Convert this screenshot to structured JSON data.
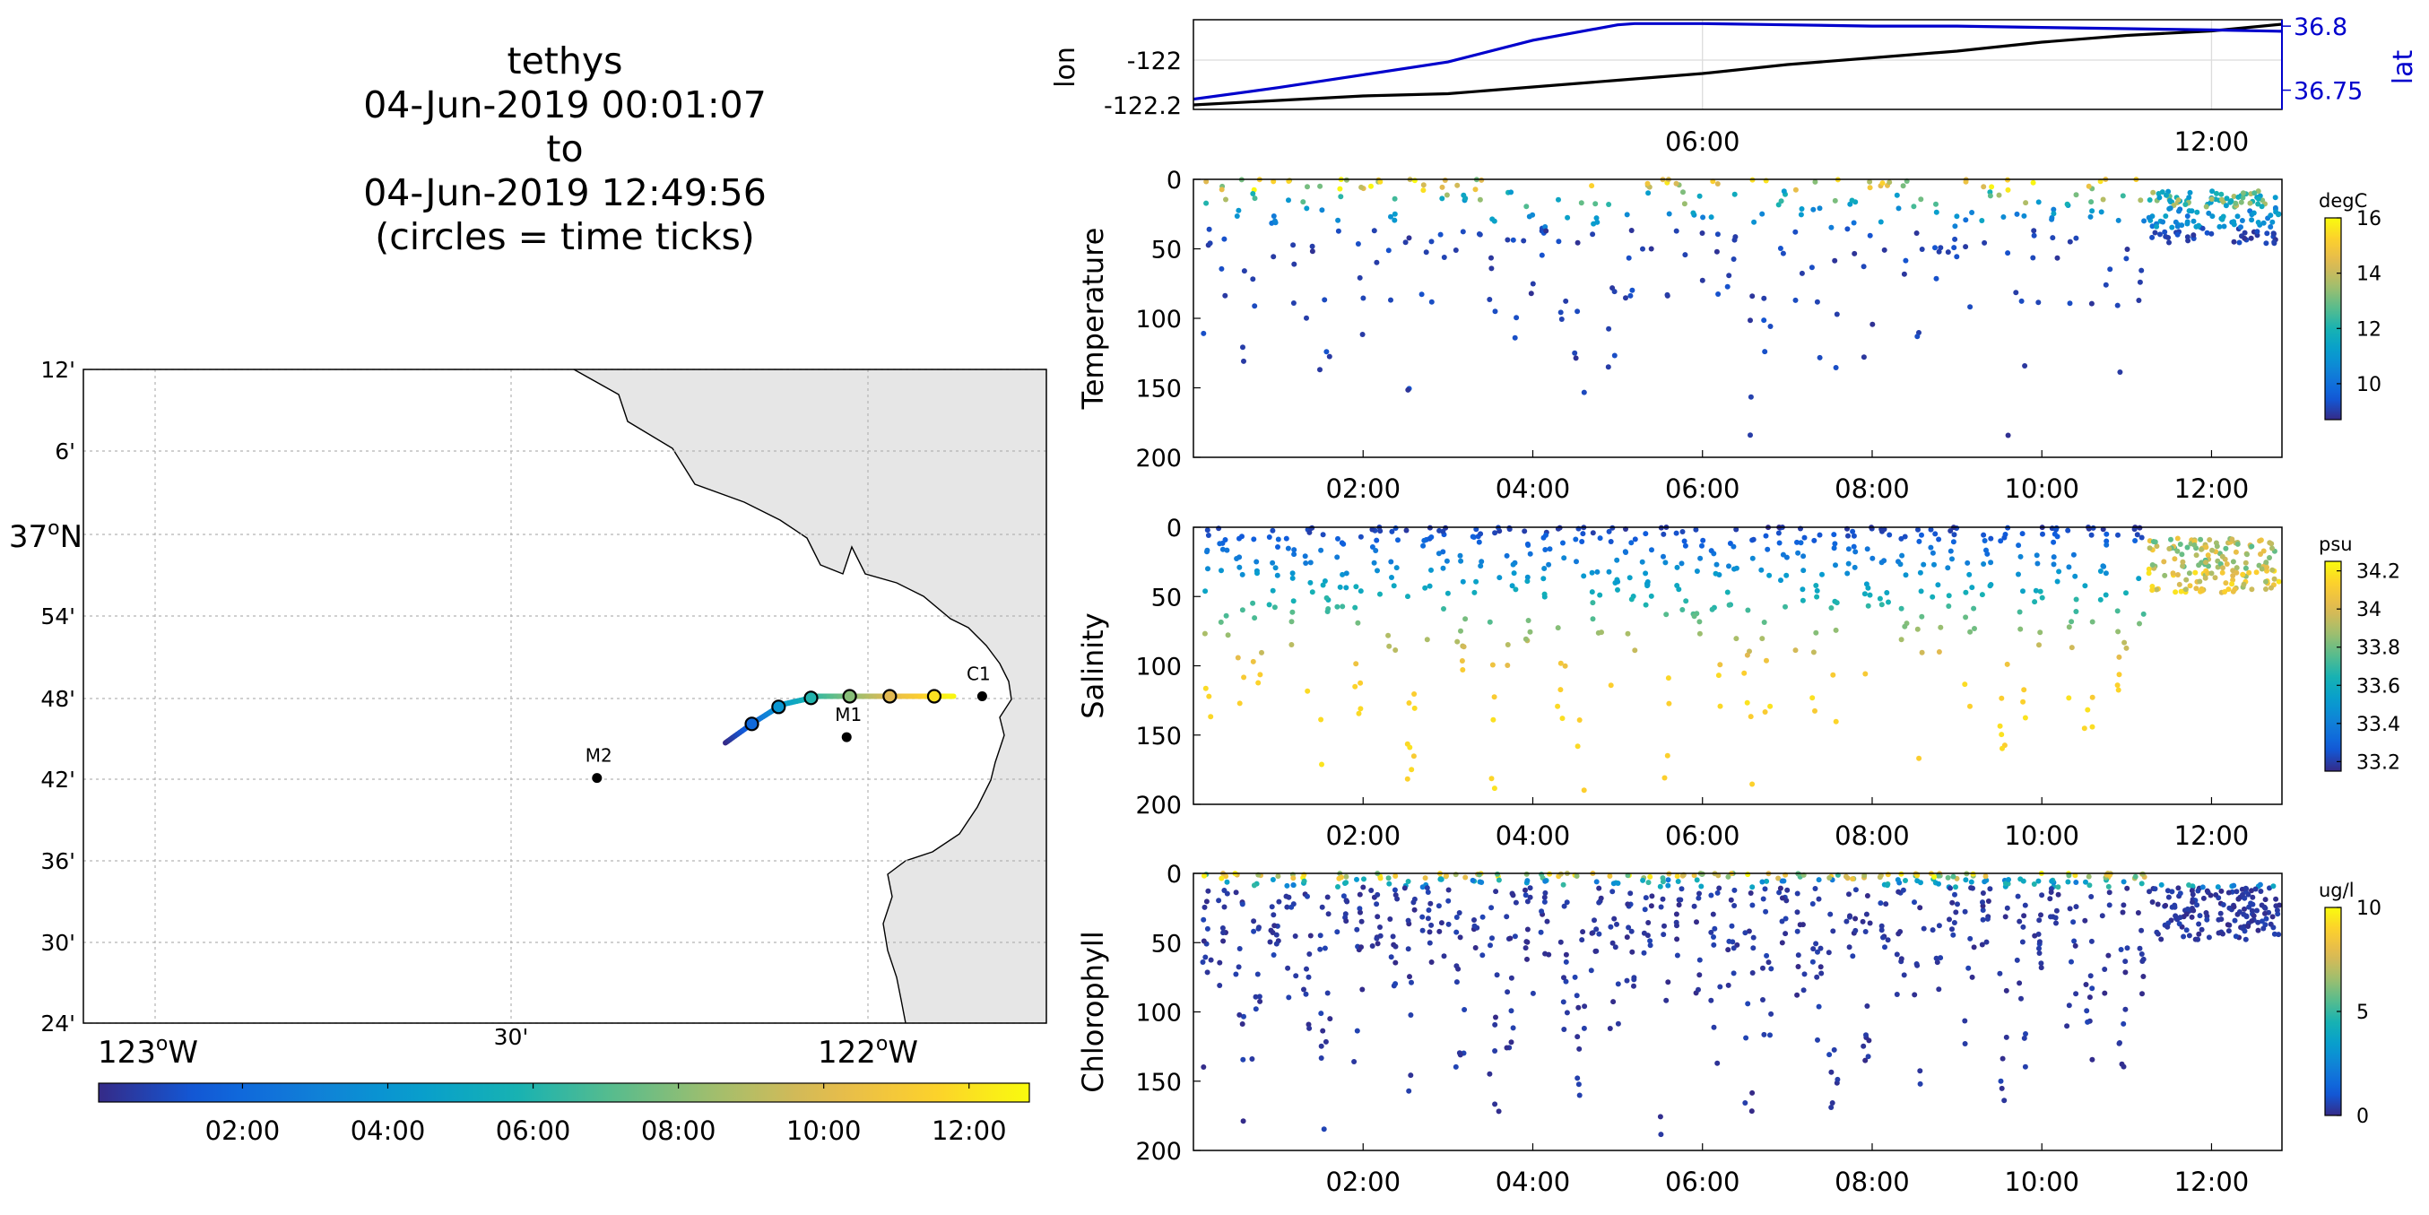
{
  "header": {
    "vehicle": "tethys",
    "start": "04-Jun-2019 00:01:07",
    "to": "to",
    "end": "04-Jun-2019 12:49:56",
    "note": "(circles = time ticks)"
  },
  "chart_data": [
    {
      "type": "map",
      "lon_labels": [
        "123",
        "30'",
        "122"
      ],
      "lon_suffix": "W",
      "lat_labels": [
        "12'",
        "6'",
        "37",
        "54'",
        "48'",
        "42'",
        "36'",
        "30'",
        "24'"
      ],
      "lat_suffix": "N",
      "degree_mark": "o",
      "lon_range": [
        -123.1,
        -121.75
      ],
      "lat_range": [
        36.4,
        37.2
      ],
      "grid": true,
      "land_color": "#e6e6e6",
      "stations": [
        {
          "name": "M2",
          "lon": -122.38,
          "lat": 36.7
        },
        {
          "name": "M1",
          "lon": -122.03,
          "lat": 36.75
        },
        {
          "name": "C1",
          "lon": -121.84,
          "lat": 36.8
        }
      ],
      "track": {
        "lon": [
          -122.2,
          -122.16,
          -122.12,
          -122.07,
          -122.01,
          -121.95,
          -121.88
        ],
        "lat": [
          36.743,
          36.768,
          36.79,
          36.8,
          36.8,
          36.8,
          36.8
        ],
        "time_range_h": [
          0.02,
          12.83
        ]
      },
      "time_tick_hours": [
        2,
        4,
        6,
        8,
        10,
        12
      ],
      "colorbar": {
        "ticks": [
          "02:00",
          "04:00",
          "06:00",
          "08:00",
          "10:00",
          "12:00"
        ],
        "range_h": [
          0.02,
          12.83
        ]
      }
    },
    {
      "type": "line",
      "ylabel": "lon",
      "y2label": "lat",
      "y_ticks": [
        "-122",
        "-122.2"
      ],
      "y2_ticks": [
        "36.8",
        "36.75"
      ],
      "x_ticks": [
        "06:00",
        "12:00"
      ],
      "xlim_h": [
        0,
        12.83
      ],
      "ylim": [
        -122.22,
        -121.82
      ],
      "y2lim": [
        36.735,
        36.805
      ],
      "grid": true,
      "series": [
        {
          "name": "lon",
          "color": "#000000",
          "x_h": [
            0,
            1,
            2,
            3,
            4,
            5,
            6,
            7,
            8,
            9,
            10,
            11,
            12,
            12.83
          ],
          "values": [
            -122.2,
            -122.18,
            -122.16,
            -122.15,
            -122.12,
            -122.09,
            -122.06,
            -122.02,
            -121.99,
            -121.96,
            -121.92,
            -121.89,
            -121.87,
            -121.84
          ]
        },
        {
          "name": "lat",
          "color": "#0000cc",
          "x_h": [
            0,
            1,
            2,
            3,
            4,
            5,
            5.2,
            6,
            7,
            8,
            9,
            10,
            11,
            12,
            12.83
          ],
          "values": [
            36.743,
            36.752,
            36.762,
            36.772,
            36.789,
            36.801,
            36.802,
            36.802,
            36.801,
            36.8,
            36.8,
            36.799,
            36.798,
            36.797,
            36.796
          ]
        }
      ]
    },
    {
      "type": "scatter",
      "ylabel": "Temperature",
      "units": "degC",
      "y_ticks": [
        "0",
        "50",
        "100",
        "150",
        "200"
      ],
      "ylim": [
        200,
        0
      ],
      "x_ticks": [
        "02:00",
        "04:00",
        "06:00",
        "08:00",
        "10:00",
        "12:00"
      ],
      "xlim_h": [
        0,
        12.83
      ],
      "clim": [
        8.7,
        16
      ],
      "cbar_ticks": [
        "10",
        "12",
        "14",
        "16"
      ]
    },
    {
      "type": "scatter",
      "ylabel": "Salinity",
      "units": "psu",
      "y_ticks": [
        "0",
        "50",
        "100",
        "150",
        "200"
      ],
      "ylim": [
        200,
        0
      ],
      "x_ticks": [
        "02:00",
        "04:00",
        "06:00",
        "08:00",
        "10:00",
        "12:00"
      ],
      "xlim_h": [
        0,
        12.83
      ],
      "clim": [
        33.15,
        34.25
      ],
      "cbar_ticks": [
        "33.2",
        "33.4",
        "33.6",
        "33.8",
        "34",
        "34.2"
      ]
    },
    {
      "type": "scatter",
      "ylabel": "Chlorophyll",
      "units": "ug/l",
      "y_ticks": [
        "0",
        "50",
        "100",
        "150",
        "200"
      ],
      "ylim": [
        200,
        0
      ],
      "x_ticks": [
        "02:00",
        "04:00",
        "06:00",
        "08:00",
        "10:00",
        "12:00"
      ],
      "xlim_h": [
        0,
        12.83
      ],
      "clim": [
        0,
        10
      ],
      "cbar_ticks": [
        "0",
        "5",
        "10"
      ]
    }
  ]
}
